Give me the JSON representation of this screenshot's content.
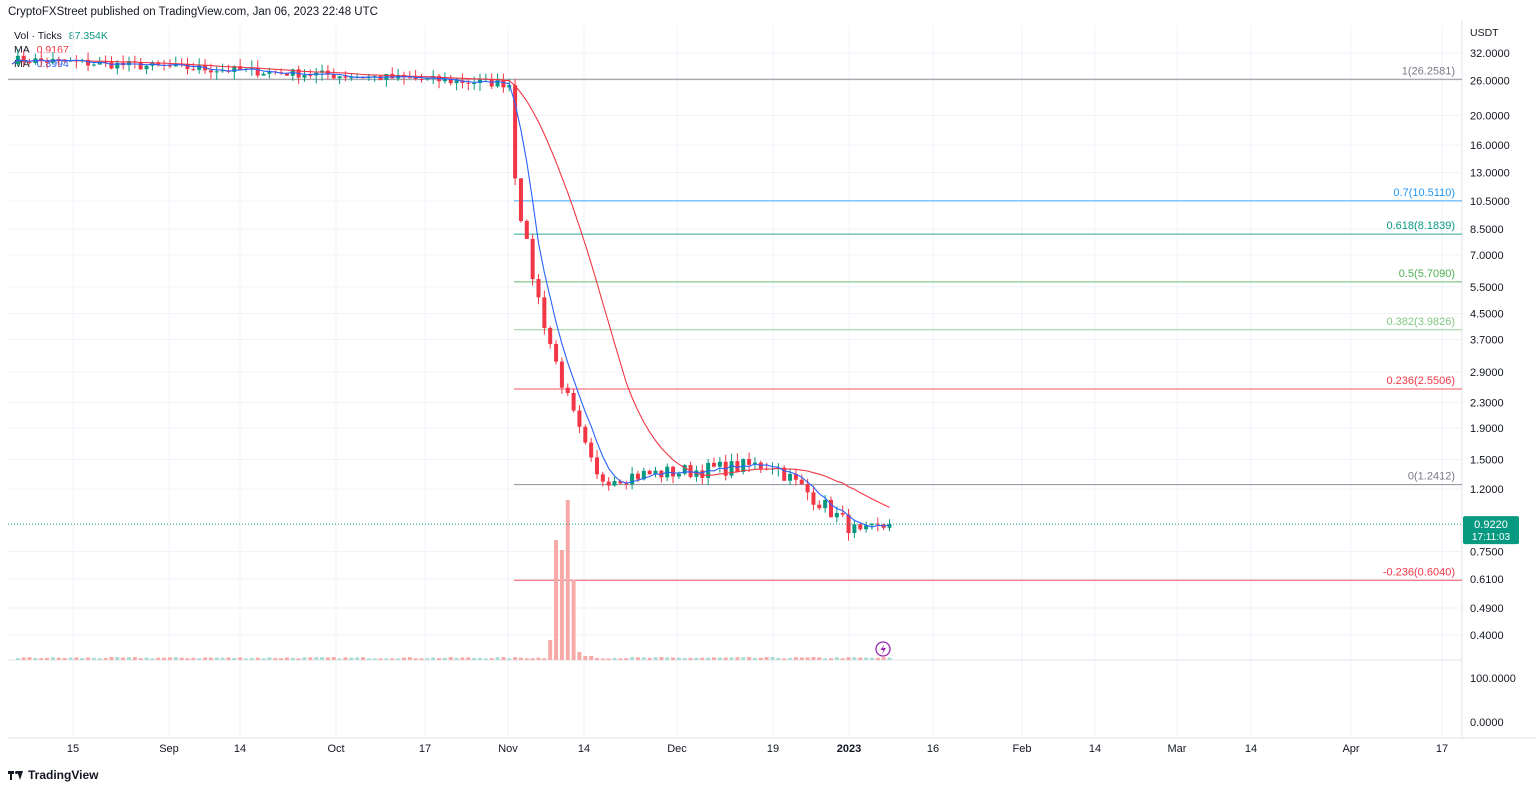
{
  "header": {
    "text": "CryptoFXStreet published on TradingView.com, Jan 06, 2023 22:48 UTC"
  },
  "legend": {
    "vol_label": "Vol · Ticks",
    "vol_value": "87.354K",
    "ma1_label": "MA",
    "ma1_value": "0.9167",
    "ma2_label": "MA",
    "ma2_value": "0.8994"
  },
  "colors": {
    "up": "#089981",
    "down": "#f23645",
    "ma_fast": "#2962ff",
    "ma_slow": "#f23645",
    "vol_down": "#f7a9a7",
    "vol_up": "#a8dcd4"
  },
  "footer": {
    "brand": "TradingView"
  },
  "price_axis": {
    "unit": "USDT",
    "scale": "log"
  },
  "chart_data": {
    "type": "candlestick",
    "y_ticks": [
      "32.0000",
      "26.0000",
      "20.0000",
      "16.0000",
      "13.0000",
      "10.5000",
      "8.5000",
      "7.0000",
      "5.5000",
      "4.5000",
      "3.7000",
      "2.9000",
      "2.3000",
      "1.9000",
      "1.5000",
      "1.2000",
      "0.9220",
      "0.7500",
      "0.6100",
      "0.4900",
      "0.4000"
    ],
    "volume_ticks": [
      "100.0000",
      "0.0000"
    ],
    "x_ticks": [
      "15",
      "Sep",
      "14",
      "Oct",
      "17",
      "Nov",
      "14",
      "Dec",
      "19",
      "2023",
      "16",
      "Feb",
      "14",
      "Mar",
      "14",
      "Apr",
      "17"
    ],
    "current_price": {
      "value": "0.9220",
      "countdown": "17:11:03"
    },
    "fib_levels": [
      {
        "label": "1(26.2581)",
        "price": 26.2581,
        "color": "#787b86"
      },
      {
        "label": "0.7(10.5110)",
        "price": 10.511,
        "color": "#2196f3"
      },
      {
        "label": "0.618(8.1839)",
        "price": 8.1839,
        "color": "#089981"
      },
      {
        "label": "0.5(5.7090)",
        "price": 5.709,
        "color": "#4caf50"
      },
      {
        "label": "0.382(3.9826)",
        "price": 3.9826,
        "color": "#81c784"
      },
      {
        "label": "0.236(2.5506)",
        "price": 2.5506,
        "color": "#f23645"
      },
      {
        "label": "0(1.2412)",
        "price": 1.2412,
        "color": "#787b86"
      },
      {
        "label": "-0.236(0.6040)",
        "price": 0.604,
        "color": "#f23645"
      }
    ],
    "ohlc_segments": [
      {
        "from_day": 0,
        "to_day": 85,
        "start": 30.5,
        "end": 25.4
      },
      {
        "from_day": 85,
        "to_day": 100,
        "start": 25.4,
        "end": 1.3
      },
      {
        "from_day": 100,
        "to_day": 130,
        "start": 1.3,
        "end": 1.45
      },
      {
        "from_day": 130,
        "to_day": 145,
        "start": 1.45,
        "end": 0.85
      },
      {
        "from_day": 145,
        "to_day": 150,
        "start": 0.85,
        "end": 0.92
      }
    ]
  }
}
